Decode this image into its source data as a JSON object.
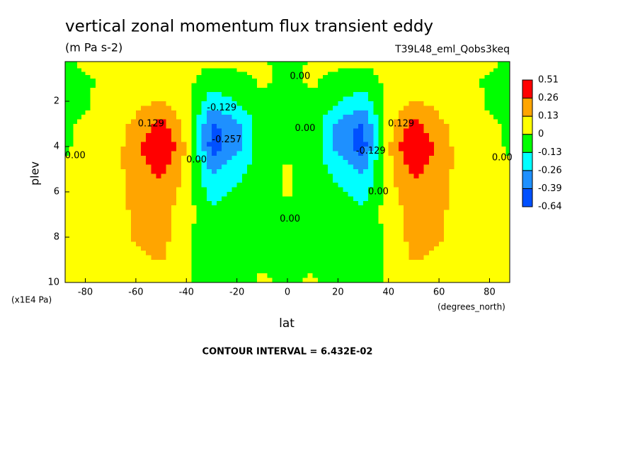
{
  "chart_data": {
    "type": "contour",
    "title": "vertical zonal momentum flux transient eddy",
    "subtitle": "(m Pa s-2)",
    "dataset": "T39L48_eml_Qobs3keq",
    "x_label": "lat",
    "x_units": "(degrees_north)",
    "y_label": "plev",
    "y_units": "(x1E4 Pa)",
    "note": "CONTOUR INTERVAL = 6.432E-02",
    "xlim": [
      -88,
      88
    ],
    "ylim": [
      0.25,
      10
    ],
    "y_reversed": true,
    "xticks": [
      -80,
      -60,
      -40,
      -20,
      0,
      20,
      40,
      60,
      80
    ],
    "yticks": [
      2,
      4,
      6,
      8,
      10
    ],
    "x": [
      -88,
      -80,
      -70,
      -60,
      -50,
      -40,
      -30,
      -20,
      -10,
      0,
      10,
      20,
      30,
      40,
      50,
      60,
      70,
      80,
      88
    ],
    "y": [
      0.25,
      1,
      2,
      3,
      4,
      5,
      6,
      7,
      8,
      9,
      10
    ],
    "z": [
      [
        -0.02,
        0.02,
        0.03,
        0.03,
        0.03,
        0.03,
        0.02,
        0.03,
        0.01,
        -0.03,
        0.01,
        0.03,
        0.02,
        0.03,
        0.03,
        0.03,
        0.03,
        0.02,
        -0.02
      ],
      [
        -0.03,
        -0.01,
        0.02,
        0.04,
        0.05,
        0.03,
        -0.05,
        -0.03,
        0.02,
        -0.02,
        0.02,
        -0.03,
        -0.05,
        0.03,
        0.05,
        0.04,
        0.02,
        -0.01,
        -0.03
      ],
      [
        -0.02,
        -0.01,
        0.03,
        0.09,
        0.14,
        0.05,
        -0.2,
        -0.12,
        -0.02,
        -0.02,
        -0.02,
        -0.12,
        -0.2,
        0.05,
        0.14,
        0.09,
        0.03,
        -0.01,
        -0.02
      ],
      [
        -0.01,
        0.01,
        0.05,
        0.16,
        0.3,
        0.08,
        -0.42,
        -0.3,
        -0.04,
        -0.01,
        -0.04,
        -0.3,
        -0.42,
        0.08,
        0.3,
        0.16,
        0.05,
        0.01,
        -0.01
      ],
      [
        -0.01,
        0.02,
        0.06,
        0.2,
        0.45,
        0.1,
        -0.45,
        -0.3,
        -0.05,
        -0.01,
        -0.05,
        -0.3,
        -0.45,
        0.1,
        0.45,
        0.2,
        0.06,
        0.02,
        -0.01
      ],
      [
        0.01,
        0.02,
        0.06,
        0.2,
        0.3,
        0.1,
        -0.3,
        -0.18,
        -0.05,
        0.01,
        -0.05,
        -0.18,
        -0.3,
        0.1,
        0.3,
        0.2,
        0.06,
        0.02,
        0.01
      ],
      [
        0.01,
        0.02,
        0.06,
        0.18,
        0.22,
        0.08,
        -0.2,
        -0.1,
        -0.04,
        0.01,
        -0.04,
        -0.1,
        -0.2,
        0.08,
        0.22,
        0.18,
        0.06,
        0.02,
        0.01
      ],
      [
        0.01,
        0.02,
        0.05,
        0.16,
        0.2,
        0.04,
        -0.08,
        -0.06,
        -0.03,
        -0.02,
        -0.03,
        -0.06,
        -0.08,
        0.04,
        0.2,
        0.16,
        0.05,
        0.02,
        0.01
      ],
      [
        0.01,
        0.02,
        0.05,
        0.15,
        0.18,
        0.03,
        -0.1,
        -0.05,
        -0.03,
        -0.02,
        -0.03,
        -0.05,
        -0.1,
        0.03,
        0.18,
        0.15,
        0.05,
        0.02,
        0.01
      ],
      [
        0.01,
        0.02,
        0.04,
        0.1,
        0.14,
        0.02,
        -0.14,
        -0.05,
        -0.01,
        -0.02,
        -0.01,
        -0.05,
        -0.14,
        0.02,
        0.14,
        0.1,
        0.04,
        0.02,
        0.01
      ],
      [
        0.01,
        0.01,
        0.03,
        0.05,
        0.06,
        0.01,
        -0.05,
        -0.03,
        0.01,
        -0.01,
        0.01,
        -0.03,
        -0.05,
        0.01,
        0.06,
        0.05,
        0.03,
        0.01,
        0.01
      ]
    ],
    "levels": [
      -0.64,
      -0.39,
      -0.26,
      -0.13,
      0,
      0.13,
      0.26,
      0.51
    ],
    "colors": [
      "#0050ff",
      "#1e90ff",
      "#00ffff",
      "#00ff00",
      "#ffff00",
      "#ffa500",
      "#ff0000"
    ],
    "contour_labels": [
      {
        "text": "0.00",
        "x": 5,
        "y": 0.9
      },
      {
        "text": "-0.129",
        "x": -26,
        "y": 2.3
      },
      {
        "text": "-0.257",
        "x": -24,
        "y": 3.7
      },
      {
        "text": "0.129",
        "x": -54,
        "y": 3.0
      },
      {
        "text": "0.00",
        "x": -84,
        "y": 4.4
      },
      {
        "text": "0.00",
        "x": -36,
        "y": 4.6
      },
      {
        "text": "0.00",
        "x": 7,
        "y": 3.2
      },
      {
        "text": "0.00",
        "x": 1,
        "y": 7.2
      },
      {
        "text": "-0.129",
        "x": 33,
        "y": 4.2
      },
      {
        "text": "0.00",
        "x": 36,
        "y": 6.0
      },
      {
        "text": "0.129",
        "x": 45,
        "y": 3.0
      },
      {
        "text": "0.00",
        "x": 85,
        "y": 4.5
      }
    ]
  }
}
